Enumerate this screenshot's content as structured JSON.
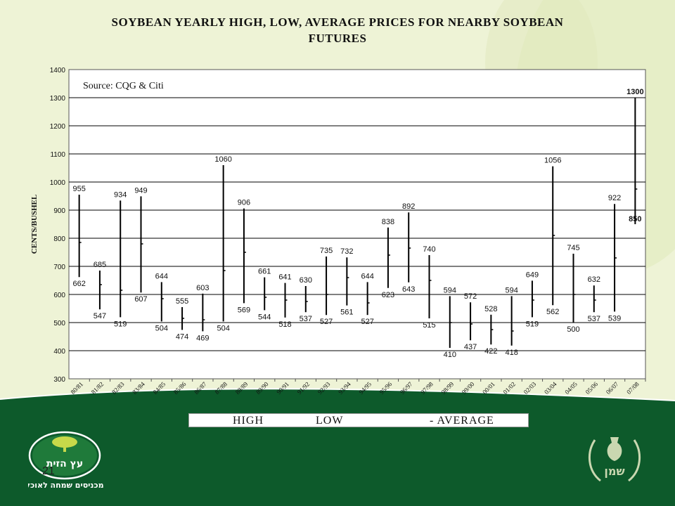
{
  "title_line1": "SOYBEAN YEARLY HIGH, LOW, AVERAGE PRICES FOR NEARBY SOYBEAN",
  "title_line2": "FUTURES",
  "source": "Source: CQG & Citi",
  "legend": {
    "high": "HIGH",
    "low": "LOW",
    "average": "- AVERAGE"
  },
  "page_number": "21",
  "logo_left_text": "עץ הזית",
  "logo_left_tagline": "מכניסים שמחה לאוכל",
  "logo_right_text": "שמן",
  "colors": {
    "background": "#eef3d6",
    "footer_green": "#0d5a2b",
    "bar": "#000000",
    "plot_bg": "#ffffff"
  },
  "chart_data": {
    "type": "high-low",
    "ylabel": "CENTS/BUSHEL",
    "xlabel": "",
    "ylim": [
      300,
      1400
    ],
    "yticks": [
      300,
      400,
      500,
      600,
      700,
      800,
      900,
      1000,
      1100,
      1200,
      1300,
      1400
    ],
    "grid": true,
    "categories": [
      "80/81",
      "81/82",
      "82/83",
      "83/84",
      "84/85",
      "85/86",
      "86/87",
      "87/88",
      "88/89",
      "89/90",
      "90/91",
      "91/92",
      "92/93",
      "93/94",
      "94/95",
      "95/96",
      "96/97",
      "97/98",
      "98/99",
      "99/00",
      "00/01",
      "01/02",
      "02/03",
      "03/04",
      "04/05",
      "05/06",
      "06/07",
      "07/08"
    ],
    "series": [
      {
        "name": "HIGH",
        "values": [
          955,
          685,
          934,
          949,
          644,
          555,
          603,
          1060,
          906,
          661,
          641,
          630,
          735,
          732,
          644,
          838,
          892,
          740,
          594,
          572,
          528,
          594,
          649,
          1056,
          745,
          632,
          922,
          1300
        ]
      },
      {
        "name": "LOW",
        "values": [
          662,
          547,
          519,
          607,
          504,
          474,
          469,
          504,
          569,
          544,
          518,
          537,
          527,
          561,
          527,
          623,
          643,
          515,
          410,
          437,
          422,
          418,
          519,
          562,
          500,
          537,
          539,
          850
        ]
      },
      {
        "name": "AVERAGE",
        "values": [
          785,
          635,
          615,
          780,
          585,
          515,
          510,
          685,
          750,
          590,
          580,
          575,
          600,
          660,
          570,
          740,
          765,
          650,
          500,
          495,
          475,
          470,
          580,
          810,
          600,
          580,
          730,
          975
        ]
      }
    ]
  }
}
